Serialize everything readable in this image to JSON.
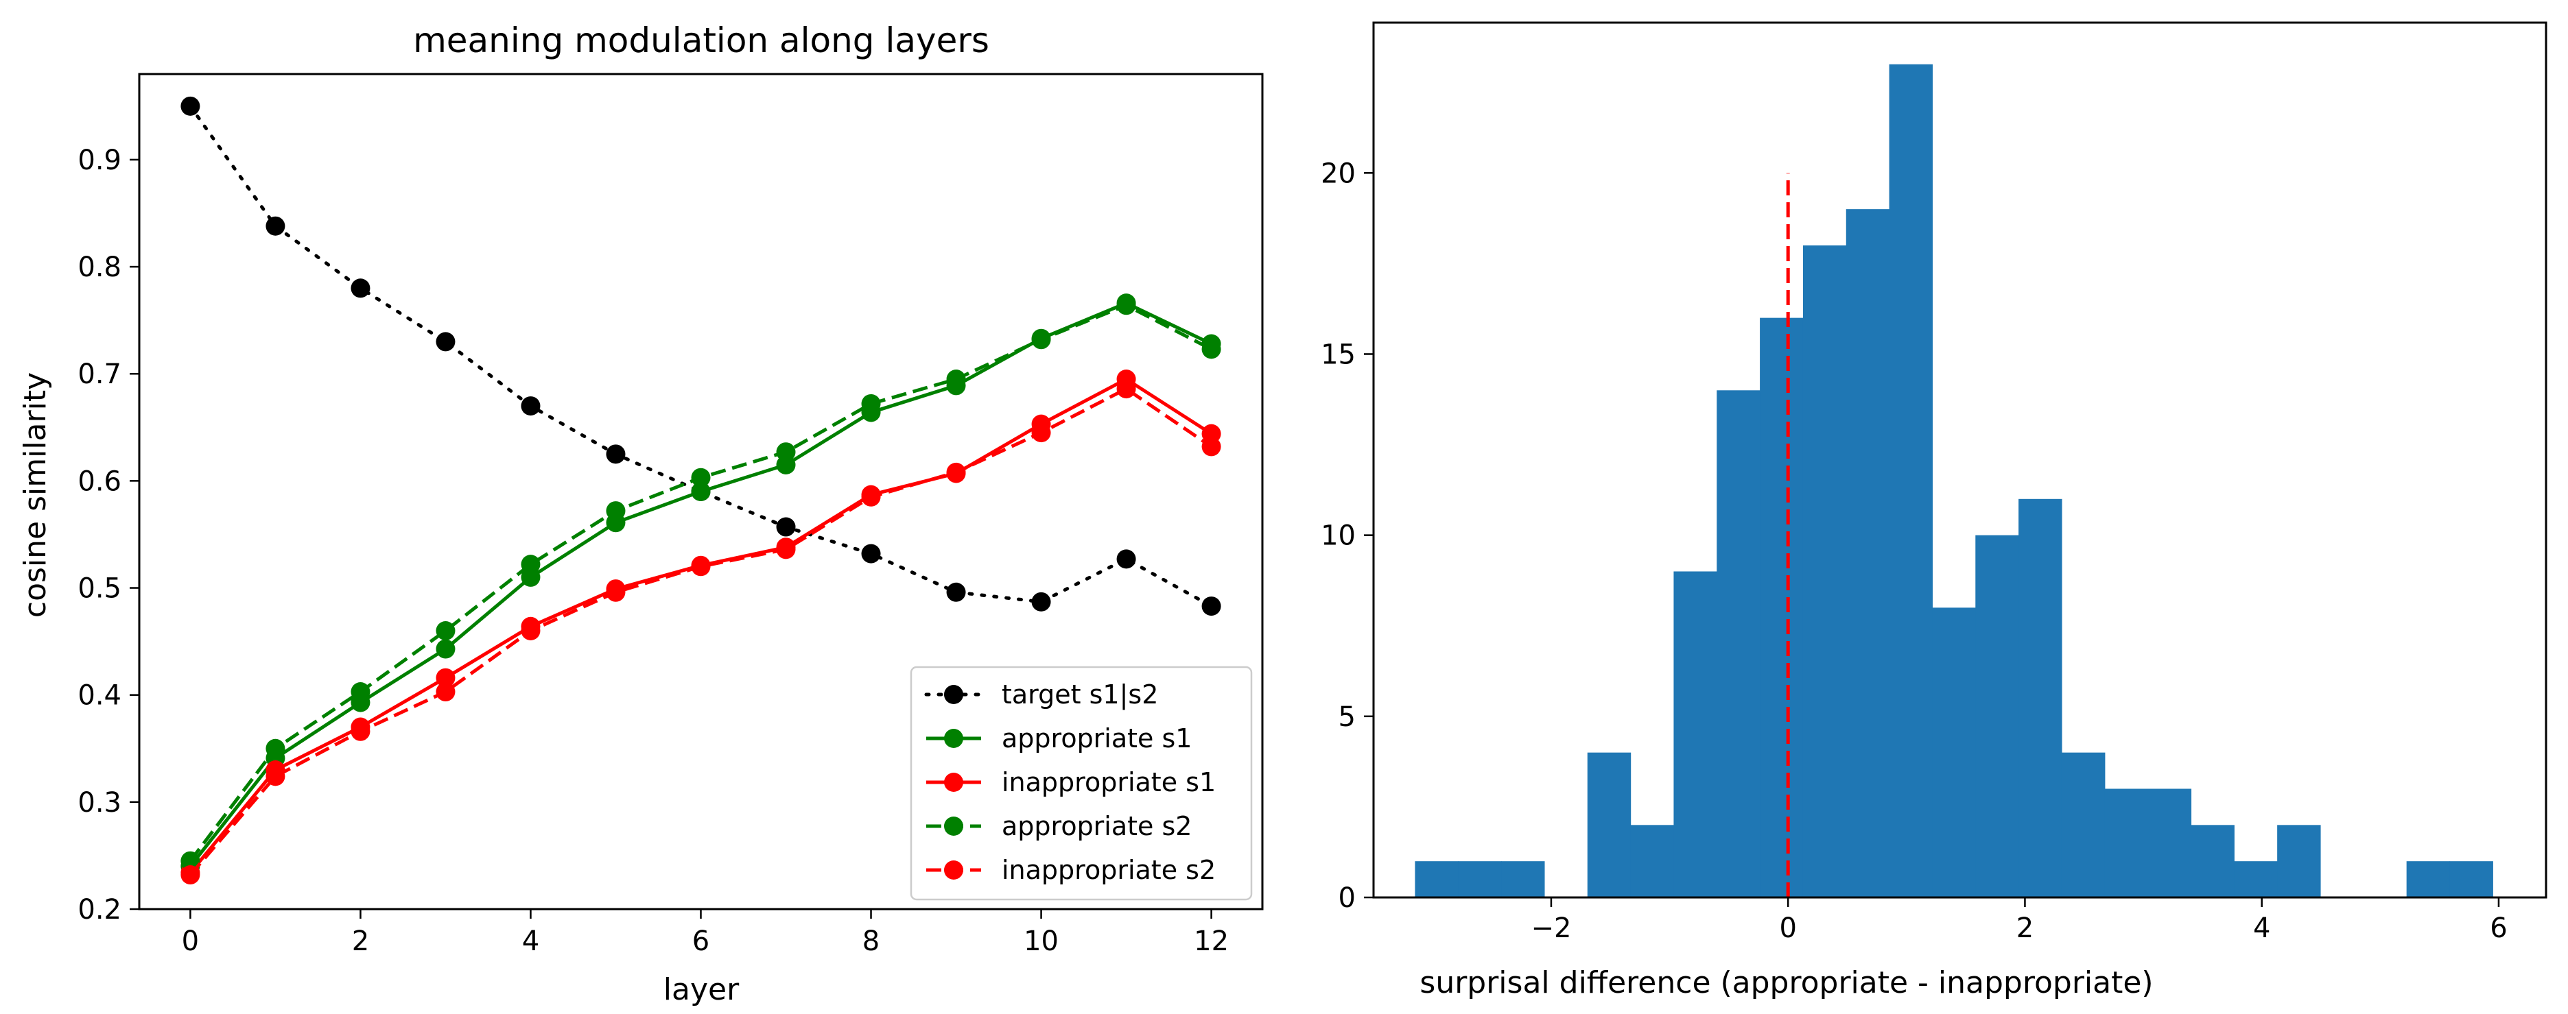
{
  "chart_data": [
    {
      "type": "line",
      "title": "meaning modulation along layers",
      "xlabel": "layer",
      "ylabel": "cosine similarity",
      "xlim": [
        -0.6,
        12.6
      ],
      "ylim": [
        0.2,
        0.98
      ],
      "xticks": [
        0,
        2,
        4,
        6,
        8,
        10,
        12
      ],
      "yticks": [
        0.2,
        0.3,
        0.4,
        0.5,
        0.6,
        0.7,
        0.8,
        0.9
      ],
      "ytick_labels": [
        "0.2",
        "0.3",
        "0.4",
        "0.5",
        "0.6",
        "0.7",
        "0.8",
        "0.9"
      ],
      "grid": false,
      "legend_position": "lower-right",
      "x": [
        0,
        1,
        2,
        3,
        4,
        5,
        6,
        7,
        8,
        9,
        10,
        11,
        12
      ],
      "series": [
        {
          "name": "target s1|s2",
          "color": "#000000",
          "style": "dotted",
          "values": [
            0.95,
            0.838,
            0.78,
            0.73,
            0.67,
            0.625,
            0.59,
            0.557,
            0.532,
            0.496,
            0.487,
            0.527,
            0.483
          ]
        },
        {
          "name": "appropriate s1",
          "color": "#008000",
          "style": "solid",
          "values": [
            0.24,
            0.341,
            0.393,
            0.443,
            0.51,
            0.561,
            0.59,
            0.615,
            0.664,
            0.689,
            0.733,
            0.766,
            0.728
          ]
        },
        {
          "name": "inappropriate s1",
          "color": "#ff0000",
          "style": "solid",
          "values": [
            0.234,
            0.33,
            0.37,
            0.416,
            0.464,
            0.499,
            0.521,
            0.538,
            0.587,
            0.607,
            0.653,
            0.695,
            0.644
          ]
        },
        {
          "name": "appropriate s2",
          "color": "#008000",
          "style": "dashed",
          "values": [
            0.245,
            0.35,
            0.403,
            0.46,
            0.522,
            0.572,
            0.603,
            0.627,
            0.672,
            0.695,
            0.732,
            0.764,
            0.723
          ]
        },
        {
          "name": "inappropriate s2",
          "color": "#ff0000",
          "style": "dashed",
          "values": [
            0.232,
            0.324,
            0.366,
            0.403,
            0.46,
            0.496,
            0.52,
            0.536,
            0.585,
            0.608,
            0.645,
            0.686,
            0.632
          ]
        }
      ]
    },
    {
      "type": "bar",
      "subtype": "histogram",
      "title": "",
      "xlabel": "surprisal difference (appropriate - inappropriate)",
      "ylabel": "",
      "xlim": [
        -3.5,
        6.4
      ],
      "ylim": [
        0,
        24.15
      ],
      "xticks": [
        -2,
        0,
        2,
        4,
        6
      ],
      "xtick_labels": [
        "−2",
        "0",
        "2",
        "4",
        "6"
      ],
      "yticks": [
        0,
        5,
        10,
        15,
        20
      ],
      "grid": false,
      "bar_color": "#1f77b4",
      "bin_width": 0.364,
      "bins_start": [
        -3.15,
        -2.786,
        -2.422,
        -2.058,
        -1.694,
        -1.33,
        -0.966,
        -0.602,
        -0.238,
        0.126,
        0.49,
        0.854,
        1.218,
        1.582,
        1.946,
        2.31,
        2.674,
        3.038,
        3.402,
        3.766,
        4.13,
        4.494,
        4.858,
        5.222,
        5.586
      ],
      "counts": [
        1,
        1,
        1,
        0,
        4,
        2,
        9,
        14,
        16,
        18,
        19,
        23,
        8,
        10,
        11,
        4,
        3,
        3,
        2,
        1,
        2,
        0,
        0,
        1,
        1
      ],
      "reference_line": {
        "x": 0,
        "y_max": 20,
        "color": "#ff0000",
        "style": "dashed"
      }
    }
  ]
}
